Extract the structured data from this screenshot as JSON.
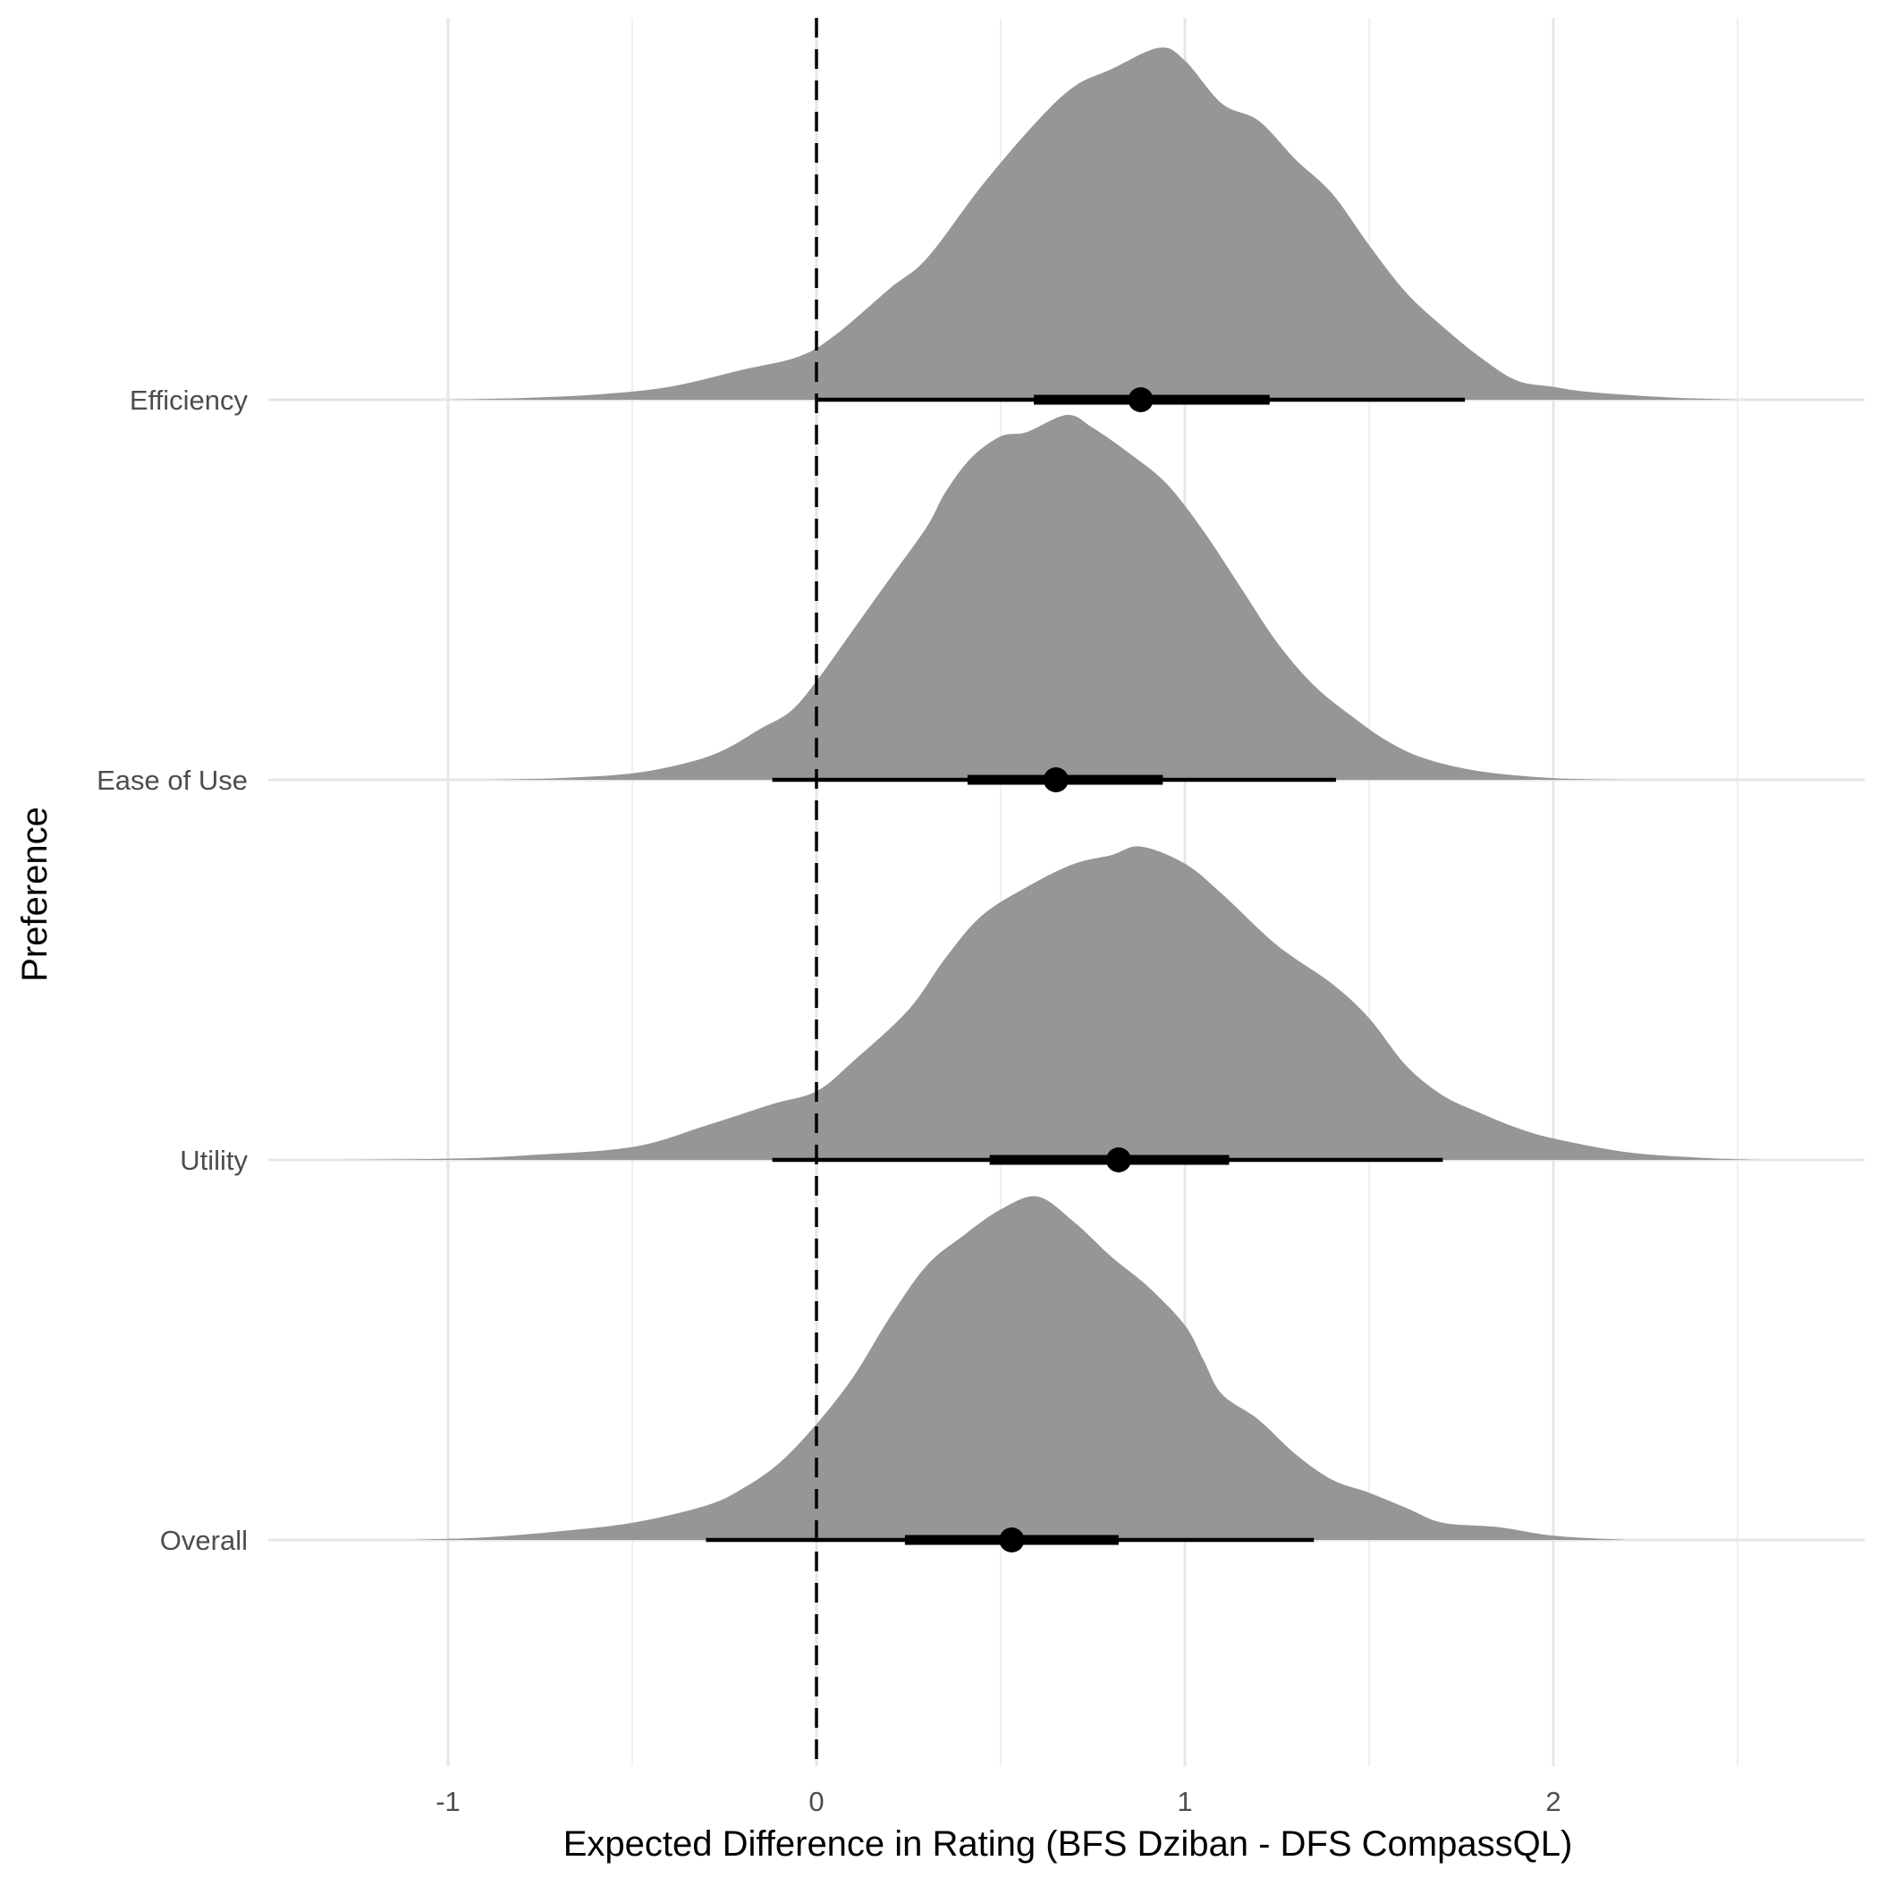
{
  "chart_data": {
    "type": "ridgeline-density",
    "title": "",
    "xlabel": "Expected Difference in Rating (BFS Dziban - DFS CompassQL)",
    "ylabel": "Preference",
    "xlim": [
      -1.5,
      2.85
    ],
    "x_ticks": [
      -1,
      0,
      1,
      2
    ],
    "x_minor_ticks": [
      -0.5,
      0.5,
      1.5,
      2.5
    ],
    "grid": true,
    "reference_line": {
      "x": 0,
      "style": "dashed"
    },
    "fill_color": "#969696",
    "interval_color": "#000000",
    "series": [
      {
        "name": "Efficiency",
        "point": 0.88,
        "interval_66": [
          0.59,
          1.23
        ],
        "interval_95": [
          0.0,
          1.76
        ],
        "density": [
          [
            -1.0,
            0.0
          ],
          [
            -0.8,
            0.004
          ],
          [
            -0.6,
            0.012
          ],
          [
            -0.4,
            0.03
          ],
          [
            -0.2,
            0.07
          ],
          [
            -0.05,
            0.1
          ],
          [
            0.05,
            0.15
          ],
          [
            0.2,
            0.26
          ],
          [
            0.3,
            0.33
          ],
          [
            0.45,
            0.5
          ],
          [
            0.6,
            0.65
          ],
          [
            0.7,
            0.73
          ],
          [
            0.8,
            0.77
          ],
          [
            0.93,
            0.82
          ],
          [
            1.0,
            0.79
          ],
          [
            1.1,
            0.69
          ],
          [
            1.2,
            0.65
          ],
          [
            1.3,
            0.56
          ],
          [
            1.4,
            0.48
          ],
          [
            1.5,
            0.36
          ],
          [
            1.6,
            0.25
          ],
          [
            1.7,
            0.17
          ],
          [
            1.8,
            0.1
          ],
          [
            1.9,
            0.045
          ],
          [
            2.0,
            0.03
          ],
          [
            2.1,
            0.018
          ],
          [
            2.3,
            0.006
          ],
          [
            2.5,
            0.0
          ]
        ]
      },
      {
        "name": "Ease of Use",
        "point": 0.65,
        "interval_66": [
          0.41,
          0.94
        ],
        "interval_95": [
          -0.12,
          1.41
        ],
        "density": [
          [
            -0.9,
            0.0
          ],
          [
            -0.7,
            0.004
          ],
          [
            -0.5,
            0.015
          ],
          [
            -0.35,
            0.04
          ],
          [
            -0.25,
            0.07
          ],
          [
            -0.15,
            0.12
          ],
          [
            -0.07,
            0.16
          ],
          [
            0.0,
            0.23
          ],
          [
            0.1,
            0.35
          ],
          [
            0.2,
            0.47
          ],
          [
            0.3,
            0.59
          ],
          [
            0.35,
            0.67
          ],
          [
            0.42,
            0.75
          ],
          [
            0.5,
            0.8
          ],
          [
            0.57,
            0.81
          ],
          [
            0.68,
            0.85
          ],
          [
            0.75,
            0.82
          ],
          [
            0.85,
            0.76
          ],
          [
            0.95,
            0.69
          ],
          [
            1.05,
            0.58
          ],
          [
            1.15,
            0.45
          ],
          [
            1.25,
            0.32
          ],
          [
            1.35,
            0.22
          ],
          [
            1.45,
            0.15
          ],
          [
            1.55,
            0.09
          ],
          [
            1.65,
            0.05
          ],
          [
            1.8,
            0.02
          ],
          [
            2.0,
            0.004
          ],
          [
            2.2,
            0.0
          ]
        ]
      },
      {
        "name": "Utility",
        "point": 0.82,
        "interval_66": [
          0.47,
          1.12
        ],
        "interval_95": [
          -0.12,
          1.7
        ],
        "density": [
          [
            -1.3,
            0.0
          ],
          [
            -1.0,
            0.003
          ],
          [
            -0.8,
            0.01
          ],
          [
            -0.5,
            0.03
          ],
          [
            -0.3,
            0.08
          ],
          [
            -0.12,
            0.13
          ],
          [
            0.0,
            0.16
          ],
          [
            0.1,
            0.23
          ],
          [
            0.25,
            0.35
          ],
          [
            0.35,
            0.47
          ],
          [
            0.45,
            0.57
          ],
          [
            0.58,
            0.64
          ],
          [
            0.7,
            0.69
          ],
          [
            0.8,
            0.71
          ],
          [
            0.88,
            0.73
          ],
          [
            1.0,
            0.69
          ],
          [
            1.1,
            0.62
          ],
          [
            1.25,
            0.5
          ],
          [
            1.4,
            0.41
          ],
          [
            1.5,
            0.33
          ],
          [
            1.6,
            0.22
          ],
          [
            1.7,
            0.15
          ],
          [
            1.8,
            0.11
          ],
          [
            1.9,
            0.075
          ],
          [
            2.0,
            0.05
          ],
          [
            2.2,
            0.018
          ],
          [
            2.4,
            0.005
          ],
          [
            2.55,
            0.0
          ]
        ]
      },
      {
        "name": "Overall",
        "point": 0.53,
        "interval_66": [
          0.24,
          0.82
        ],
        "interval_95": [
          -0.3,
          1.35
        ],
        "density": [
          [
            -1.1,
            0.0
          ],
          [
            -0.9,
            0.006
          ],
          [
            -0.7,
            0.02
          ],
          [
            -0.5,
            0.04
          ],
          [
            -0.3,
            0.08
          ],
          [
            -0.2,
            0.12
          ],
          [
            -0.1,
            0.18
          ],
          [
            0.0,
            0.27
          ],
          [
            0.1,
            0.38
          ],
          [
            0.2,
            0.52
          ],
          [
            0.3,
            0.64
          ],
          [
            0.4,
            0.71
          ],
          [
            0.5,
            0.77
          ],
          [
            0.6,
            0.8
          ],
          [
            0.7,
            0.74
          ],
          [
            0.8,
            0.66
          ],
          [
            0.9,
            0.59
          ],
          [
            1.0,
            0.5
          ],
          [
            1.05,
            0.42
          ],
          [
            1.1,
            0.34
          ],
          [
            1.2,
            0.28
          ],
          [
            1.3,
            0.2
          ],
          [
            1.4,
            0.14
          ],
          [
            1.5,
            0.11
          ],
          [
            1.6,
            0.075
          ],
          [
            1.7,
            0.04
          ],
          [
            1.85,
            0.03
          ],
          [
            2.0,
            0.01
          ],
          [
            2.2,
            0.0
          ]
        ]
      }
    ]
  }
}
